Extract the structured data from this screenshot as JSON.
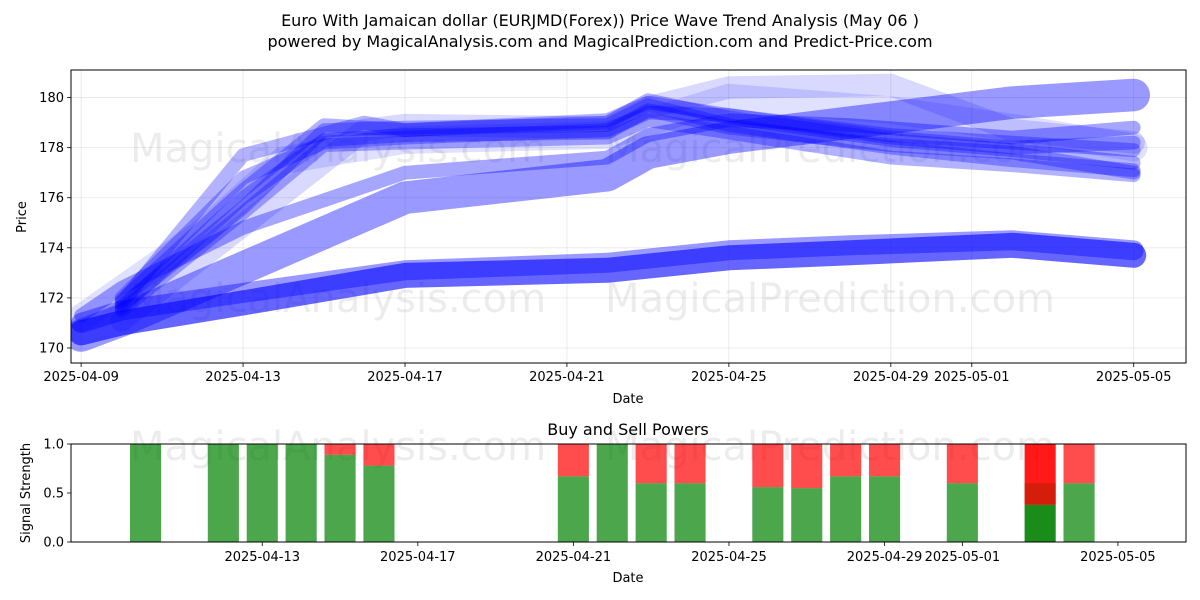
{
  "chart_data": [
    {
      "type": "line",
      "title": "Euro With Jamaican dollar (EURJMD(Forex)) Price Wave Trend Analysis (May 06 )",
      "subtitle": "powered by MagicalAnalysis.com and MagicalPrediction.com and Predict-Price.com",
      "xlabel": "Date",
      "ylabel": "Price",
      "x_ticks": [
        "2025-04-09",
        "2025-04-13",
        "2025-04-17",
        "2025-04-21",
        "2025-04-25",
        "2025-04-29",
        "2025-05-01",
        "2025-05-05"
      ],
      "y_ticks": [
        170,
        172,
        174,
        176,
        178,
        180
      ],
      "xlim": [
        "2025-04-08T18:00",
        "2025-05-06T07:00"
      ],
      "ylim": [
        169.4,
        181.1
      ],
      "grid": true,
      "watermarks": [
        "MagicalAnalysis.com",
        "MagicalPrediction.com"
      ],
      "band_color": "#0000ff",
      "series": [
        {
          "x": [
            "2025-04-09",
            "2025-04-10",
            "2025-04-13",
            "2025-04-17",
            "2025-04-22",
            "2025-04-25",
            "2025-04-28",
            "2025-05-02",
            "2025-05-05"
          ],
          "y": [
            170.6,
            171.0,
            171.8,
            172.9,
            173.1,
            173.6,
            173.8,
            174.1,
            173.7
          ],
          "width": 1.0,
          "opacity": 0.6
        },
        {
          "x": [
            "2025-04-09",
            "2025-04-10",
            "2025-04-13",
            "2025-04-17",
            "2025-04-22",
            "2025-04-25",
            "2025-04-28",
            "2025-05-02",
            "2025-05-05"
          ],
          "y": [
            171.0,
            171.5,
            172.2,
            173.1,
            173.4,
            173.9,
            174.1,
            174.3,
            173.9
          ],
          "width": 0.8,
          "opacity": 0.4
        },
        {
          "x": [
            "2025-04-09",
            "2025-04-10",
            "2025-04-13",
            "2025-04-17",
            "2025-04-22",
            "2025-04-23",
            "2025-04-25",
            "2025-04-28",
            "2025-05-02",
            "2025-05-05"
          ],
          "y": [
            170.5,
            171.1,
            173.2,
            176.0,
            176.9,
            177.8,
            178.4,
            179.0,
            179.8,
            180.1
          ],
          "width": 1.3,
          "opacity": 0.4
        },
        {
          "x": [
            "2025-04-09",
            "2025-04-10",
            "2025-04-13",
            "2025-04-17",
            "2025-04-22",
            "2025-04-23",
            "2025-04-25",
            "2025-04-28",
            "2025-05-02",
            "2025-05-05"
          ],
          "y": [
            171.3,
            172.4,
            174.8,
            177.0,
            177.6,
            178.5,
            179.1,
            178.9,
            178.4,
            178.8
          ],
          "width": 0.55,
          "opacity": 0.35
        },
        {
          "x": [
            "2025-04-10",
            "2025-04-13",
            "2025-04-15",
            "2025-04-17",
            "2025-04-22",
            "2025-04-23",
            "2025-04-25",
            "2025-04-29",
            "2025-05-02",
            "2025-05-05"
          ],
          "y": [
            171.7,
            175.6,
            178.7,
            178.8,
            178.9,
            179.7,
            178.9,
            178.0,
            177.5,
            177.1
          ],
          "width": 0.55,
          "opacity": 0.3
        },
        {
          "x": [
            "2025-04-10",
            "2025-04-13",
            "2025-04-15",
            "2025-04-17",
            "2025-04-22",
            "2025-04-23",
            "2025-04-25",
            "2025-04-29",
            "2025-05-02",
            "2025-05-05"
          ],
          "y": [
            171.9,
            176.3,
            178.9,
            178.7,
            179.0,
            179.9,
            179.2,
            178.3,
            177.9,
            177.4
          ],
          "width": 0.55,
          "opacity": 0.3
        },
        {
          "x": [
            "2025-04-10",
            "2025-04-13",
            "2025-04-15",
            "2025-04-17",
            "2025-04-22",
            "2025-04-23",
            "2025-04-25",
            "2025-04-29",
            "2025-05-02",
            "2025-05-05"
          ],
          "y": [
            171.6,
            176.0,
            178.3,
            178.5,
            178.6,
            179.5,
            178.8,
            178.1,
            177.8,
            177.0
          ],
          "width": 0.55,
          "opacity": 0.3
        },
        {
          "x": [
            "2025-04-10",
            "2025-04-13",
            "2025-04-15",
            "2025-04-17",
            "2025-04-22",
            "2025-04-23",
            "2025-04-25",
            "2025-04-29",
            "2025-05-02",
            "2025-05-05"
          ],
          "y": [
            172.0,
            176.8,
            178.2,
            178.4,
            178.7,
            179.4,
            179.3,
            178.5,
            178.2,
            177.9
          ],
          "width": 0.55,
          "opacity": 0.3
        },
        {
          "x": [
            "2025-04-10",
            "2025-04-13",
            "2025-04-16",
            "2025-04-17",
            "2025-04-22",
            "2025-04-23",
            "2025-04-25",
            "2025-04-29",
            "2025-05-02",
            "2025-05-05"
          ],
          "y": [
            171.8,
            177.7,
            179.0,
            178.7,
            179.1,
            179.8,
            179.3,
            178.4,
            178.0,
            178.2
          ],
          "width": 0.55,
          "opacity": 0.3
        },
        {
          "x": [
            "2025-04-10",
            "2025-04-13",
            "2025-04-15",
            "2025-04-17",
            "2025-04-22",
            "2025-04-23",
            "2025-04-25",
            "2025-04-29",
            "2025-05-02",
            "2025-05-05"
          ],
          "y": [
            171.5,
            175.4,
            178.1,
            178.2,
            178.4,
            179.1,
            178.6,
            177.6,
            177.3,
            176.9
          ],
          "width": 0.55,
          "opacity": 0.3
        },
        {
          "x": [
            "2025-04-09",
            "2025-04-12",
            "2025-04-14",
            "2025-04-17",
            "2025-04-22",
            "2025-04-25",
            "2025-04-29",
            "2025-05-02",
            "2025-05-05"
          ],
          "y": [
            171.2,
            174.6,
            177.5,
            178.3,
            178.5,
            180.0,
            179.5,
            178.8,
            178.0
          ],
          "width": 1.1,
          "opacity": 0.12
        },
        {
          "x": [
            "2025-04-10",
            "2025-04-13",
            "2025-04-16",
            "2025-04-17",
            "2025-04-22",
            "2025-04-23",
            "2025-04-25",
            "2025-04-29",
            "2025-05-02",
            "2025-05-05"
          ],
          "y": [
            171.1,
            174.9,
            178.7,
            178.9,
            178.8,
            179.6,
            180.4,
            180.5,
            178.7,
            178.2
          ],
          "width": 0.9,
          "opacity": 0.15
        }
      ]
    },
    {
      "type": "bar",
      "title": "Buy and Sell Powers",
      "xlabel": "Date",
      "ylabel": "Signal Strength",
      "x_ticks": [
        "2025-04-13",
        "2025-04-17",
        "2025-04-21",
        "2025-04-25",
        "2025-04-29",
        "2025-05-01",
        "2025-05-05"
      ],
      "y_ticks": [
        "0.0",
        "0.5",
        "1.0"
      ],
      "xlim": [
        "2025-04-08T02:00",
        "2025-05-06T18:00"
      ],
      "ylim": [
        0,
        1
      ],
      "buy_color": "#008000",
      "sell_color": "#ff0000",
      "bars": [
        {
          "date": "2025-04-10",
          "buy": 1.0,
          "sell": 0.0
        },
        {
          "date": "2025-04-12",
          "buy": 1.0,
          "sell": 0.0
        },
        {
          "date": "2025-04-13",
          "buy": 1.0,
          "sell": 0.0
        },
        {
          "date": "2025-04-14",
          "buy": 1.0,
          "sell": 0.0
        },
        {
          "date": "2025-04-15",
          "buy": 0.89,
          "sell": 0.11
        },
        {
          "date": "2025-04-16",
          "buy": 0.78,
          "sell": 0.22
        },
        {
          "date": "2025-04-21",
          "buy": 0.67,
          "sell": 0.33
        },
        {
          "date": "2025-04-22",
          "buy": 1.0,
          "sell": 0.0
        },
        {
          "date": "2025-04-23",
          "buy": 0.6,
          "sell": 0.4
        },
        {
          "date": "2025-04-24",
          "buy": 0.6,
          "sell": 0.4
        },
        {
          "date": "2025-04-26",
          "buy": 0.56,
          "sell": 0.44
        },
        {
          "date": "2025-04-27",
          "buy": 0.55,
          "sell": 0.45
        },
        {
          "date": "2025-04-28",
          "buy": 0.67,
          "sell": 0.33
        },
        {
          "date": "2025-04-29",
          "buy": 0.67,
          "sell": 0.33
        },
        {
          "date": "2025-05-01",
          "buy": 0.6,
          "sell": 0.4
        },
        {
          "date": "2025-05-03",
          "buy": 0.38,
          "sell": 0.62,
          "strong": true
        },
        {
          "date": "2025-05-04",
          "buy": 0.6,
          "sell": 0.4
        }
      ]
    }
  ]
}
